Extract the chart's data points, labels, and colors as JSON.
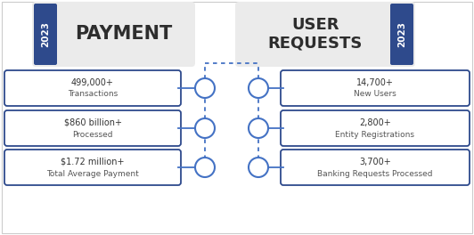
{
  "bg_color": "#ffffff",
  "dark_blue": "#2E4A8C",
  "mid_blue": "#4472C4",
  "box_edge": "#2E4A8C",
  "header_fill": "#e8e8e8",
  "year_label": "2023",
  "payment_title": "PAYMENT",
  "user_title": "USER\nREQUESTS",
  "left_items": [
    {
      "line1": "499,000+",
      "line2": "Transactions"
    },
    {
      "line1": "$860 billion+",
      "line2": "Processed"
    },
    {
      "line1": "$1.72 million+",
      "line2": "Total Average Payment"
    }
  ],
  "right_items": [
    {
      "line1": "14,700+",
      "line2": "New Users"
    },
    {
      "line1": "2,800+",
      "line2": "Entity Registrations"
    },
    {
      "line1": "3,700+",
      "line2": "Banking Requests Processed"
    }
  ],
  "figsize": [
    5.32,
    2.64
  ],
  "dpi": 100,
  "xlim": [
    0,
    532
  ],
  "ylim": [
    0,
    264
  ]
}
